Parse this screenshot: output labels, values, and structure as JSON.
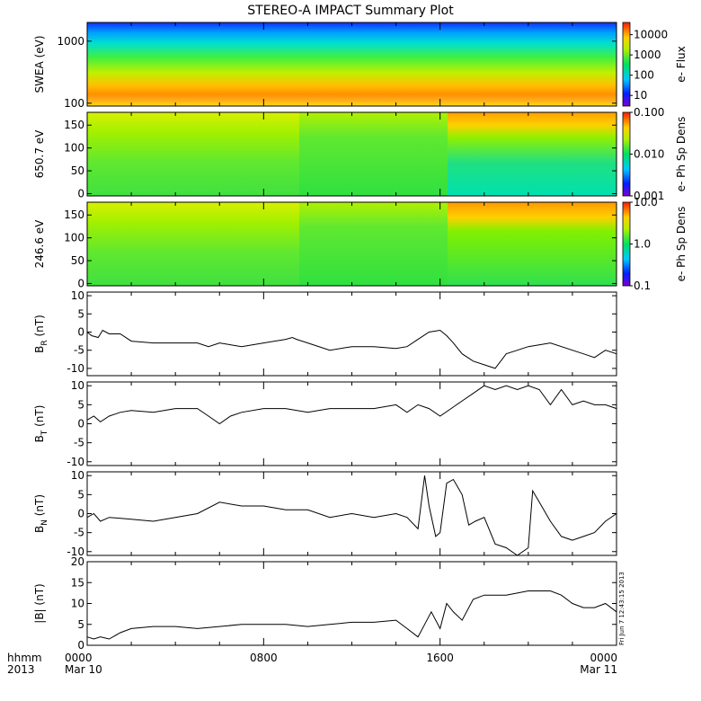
{
  "title": "STEREO-A IMPACT Summary Plot",
  "footer": {
    "time_label": "hhmm",
    "year_label": "2013",
    "x_ticks": [
      {
        "hour": 0,
        "label": "0000",
        "sublabel": "Mar 10"
      },
      {
        "hour": 8,
        "label": "0800",
        "sublabel": ""
      },
      {
        "hour": 16,
        "label": "1600",
        "sublabel": ""
      },
      {
        "hour": 24,
        "label": "0000",
        "sublabel": "Mar 11"
      }
    ],
    "timestamp": "Fri Jun  7 12:43:15 2013"
  },
  "chart_data": [
    {
      "type": "heatmap",
      "panel": "swea",
      "ylabel": "SWEA (eV)",
      "yscale": "log",
      "ylim": [
        90,
        2000
      ],
      "y_ticks": [
        {
          "v": 100,
          "l": "100"
        },
        {
          "v": 1000,
          "l": "1000"
        }
      ],
      "colorbar": {
        "label": "e- Flux",
        "scale": "log",
        "range": [
          3,
          40000
        ],
        "ticks": [
          {
            "v": 10,
            "l": "10"
          },
          {
            "v": 100,
            "l": "100"
          },
          {
            "v": 1000,
            "l": "1000"
          },
          {
            "v": 10000,
            "l": "10000"
          }
        ]
      },
      "xlim_hours": [
        0,
        24
      ]
    },
    {
      "type": "heatmap",
      "panel": "pad_high",
      "ylabel": "650.7 eV",
      "ylim": [
        -5,
        178
      ],
      "y_ticks": [
        {
          "v": 0,
          "l": "0"
        },
        {
          "v": 50,
          "l": "50"
        },
        {
          "v": 100,
          "l": "100"
        },
        {
          "v": 150,
          "l": "150"
        }
      ],
      "colorbar": {
        "label": "e- Ph Sp Dens",
        "scale": "log",
        "range": [
          0.001,
          0.1
        ],
        "ticks": [
          {
            "v": 0.001,
            "l": "0.001"
          },
          {
            "v": 0.01,
            "l": "0.010"
          },
          {
            "v": 0.1,
            "l": "0.100"
          }
        ]
      },
      "xlim_hours": [
        0,
        24
      ]
    },
    {
      "type": "heatmap",
      "panel": "pad_low",
      "ylabel": "246.6 eV",
      "ylim": [
        -5,
        178
      ],
      "y_ticks": [
        {
          "v": 0,
          "l": "0"
        },
        {
          "v": 50,
          "l": "50"
        },
        {
          "v": 100,
          "l": "100"
        },
        {
          "v": 150,
          "l": "150"
        }
      ],
      "colorbar": {
        "label": "e- Ph Sp Dens",
        "scale": "log",
        "range": [
          0.1,
          10
        ],
        "ticks": [
          {
            "v": 0.1,
            "l": "0.1"
          },
          {
            "v": 1,
            "l": "1.0"
          },
          {
            "v": 10,
            "l": "10.0"
          }
        ]
      },
      "xlim_hours": [
        0,
        24
      ]
    },
    {
      "type": "line",
      "panel": "br",
      "ylabel": "B",
      "ylabel_sub": "R",
      "ylabel_unit": " (nT)",
      "ylim": [
        -12,
        11
      ],
      "y_ticks": [
        {
          "v": -10,
          "l": "-10"
        },
        {
          "v": -5,
          "l": "-5"
        },
        {
          "v": 0,
          "l": "0"
        },
        {
          "v": 5,
          "l": "5"
        },
        {
          "v": 10,
          "l": "10"
        }
      ],
      "x": [
        0,
        0.2,
        0.5,
        0.7,
        1,
        1.5,
        2,
        3,
        4,
        5,
        5.5,
        6,
        7,
        8,
        9,
        9.3,
        9.5,
        10,
        11,
        12,
        13,
        14,
        14.5,
        15,
        15.5,
        16,
        16.3,
        16.6,
        17,
        17.5,
        18,
        18.5,
        19,
        19.5,
        20,
        21,
        22,
        22.5,
        23,
        23.5,
        24
      ],
      "y": [
        0,
        -1,
        -1.5,
        0.5,
        -0.5,
        -0.5,
        -2.5,
        -3,
        -3,
        -3,
        -4,
        -3,
        -4,
        -3,
        -2,
        -1.5,
        -2,
        -3,
        -5,
        -4,
        -4,
        -4.5,
        -4,
        -2,
        0,
        0.5,
        -1,
        -3,
        -6,
        -8,
        -9,
        -10,
        -6,
        -5,
        -4,
        -3,
        -5,
        -6,
        -7,
        -5,
        -6
      ]
    },
    {
      "type": "line",
      "panel": "bt",
      "ylabel": "B",
      "ylabel_sub": "T",
      "ylabel_unit": " (nT)",
      "ylim": [
        -11,
        11
      ],
      "y_ticks": [
        {
          "v": -10,
          "l": "-10"
        },
        {
          "v": -5,
          "l": "-5"
        },
        {
          "v": 0,
          "l": "0"
        },
        {
          "v": 5,
          "l": "5"
        },
        {
          "v": 10,
          "l": "10"
        }
      ],
      "x": [
        0,
        0.3,
        0.6,
        1,
        1.5,
        2,
        3,
        4,
        5,
        5.5,
        6,
        6.5,
        7,
        8,
        9,
        10,
        11,
        12,
        13,
        14,
        14.5,
        15,
        15.5,
        16,
        16.5,
        17,
        17.5,
        18,
        18.5,
        19,
        19.5,
        20,
        20.5,
        21,
        21.5,
        22,
        22.5,
        23,
        23.5,
        24
      ],
      "y": [
        1,
        2,
        0.5,
        2,
        3,
        3.5,
        3,
        4,
        4,
        2,
        0,
        2,
        3,
        4,
        4,
        3,
        4,
        4,
        4,
        5,
        3,
        5,
        4,
        2,
        4,
        6,
        8,
        10,
        9,
        10,
        9,
        10,
        9,
        5,
        9,
        5,
        6,
        5,
        5,
        4
      ]
    },
    {
      "type": "line",
      "panel": "bn",
      "ylabel": "B",
      "ylabel_sub": "N",
      "ylabel_unit": " (nT)",
      "ylim": [
        -11,
        11
      ],
      "y_ticks": [
        {
          "v": -10,
          "l": "-10"
        },
        {
          "v": -5,
          "l": "-5"
        },
        {
          "v": 0,
          "l": "0"
        },
        {
          "v": 5,
          "l": "5"
        },
        {
          "v": 10,
          "l": "10"
        }
      ],
      "x": [
        0,
        0.3,
        0.6,
        1,
        2,
        3,
        4,
        5,
        6,
        7,
        8,
        9,
        10,
        11,
        12,
        13,
        14,
        14.5,
        15,
        15.3,
        15.5,
        15.8,
        16,
        16.3,
        16.6,
        17,
        17.3,
        17.6,
        18,
        18.5,
        19,
        19.5,
        20,
        20.2,
        20.5,
        21,
        21.5,
        22,
        22.5,
        23,
        23.5,
        24
      ],
      "y": [
        -1,
        0,
        -2,
        -1,
        -1.5,
        -2,
        -1,
        0,
        3,
        2,
        2,
        1,
        1,
        -1,
        0,
        -1,
        0,
        -1,
        -4,
        10,
        2,
        -6,
        -5,
        8,
        9,
        5,
        -3,
        -2,
        -1,
        -8,
        -9,
        -11,
        -9,
        6,
        3,
        -2,
        -6,
        -7,
        -6,
        -5,
        -2,
        0
      ]
    },
    {
      "type": "line",
      "panel": "bmag",
      "ylabel": "|B| (nT)",
      "ylim": [
        0,
        20
      ],
      "y_ticks": [
        {
          "v": 0,
          "l": "0"
        },
        {
          "v": 5,
          "l": "5"
        },
        {
          "v": 10,
          "l": "10"
        },
        {
          "v": 15,
          "l": "15"
        },
        {
          "v": 20,
          "l": "20"
        }
      ],
      "x": [
        0,
        0.3,
        0.6,
        1,
        1.5,
        2,
        3,
        4,
        5,
        6,
        7,
        8,
        9,
        10,
        11,
        12,
        13,
        14,
        14.5,
        15,
        15.3,
        15.6,
        16,
        16.3,
        16.6,
        17,
        17.5,
        18,
        18.5,
        19,
        19.5,
        20,
        20.5,
        21,
        21.5,
        22,
        22.5,
        23,
        23.5,
        24
      ],
      "y": [
        2,
        1.5,
        2,
        1.5,
        3,
        4,
        4.5,
        4.5,
        4,
        4.5,
        5,
        5,
        5,
        4.5,
        5,
        5.5,
        5.5,
        6,
        4,
        2,
        5,
        8,
        4,
        10,
        8,
        6,
        11,
        12,
        12,
        12,
        12.5,
        13,
        13,
        13,
        12,
        10,
        9,
        9,
        10,
        8
      ]
    }
  ]
}
